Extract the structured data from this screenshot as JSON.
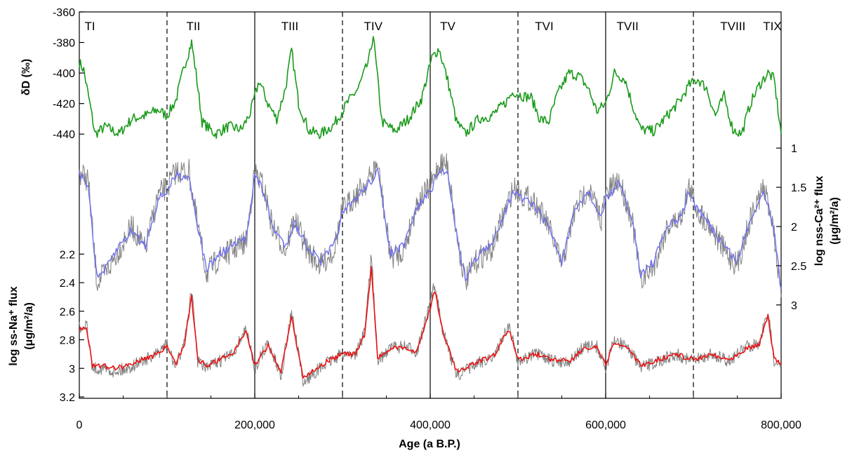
{
  "chart_data": {
    "type": "line",
    "x_axis": {
      "label": "Age (a B.P.)",
      "range": [
        0,
        800000
      ],
      "ticks": [
        0,
        200000,
        400000,
        600000,
        800000
      ],
      "tick_labels": [
        "0",
        "200,000",
        "400,000",
        "600,000",
        "800,000"
      ]
    },
    "terminations": [
      {
        "label": "TI",
        "age": 12000
      },
      {
        "label": "TII",
        "age": 130000
      },
      {
        "label": "TIII",
        "age": 240000
      },
      {
        "label": "TIV",
        "age": 335000
      },
      {
        "label": "TV",
        "age": 420000
      },
      {
        "label": "TVI",
        "age": 530000
      },
      {
        "label": "TVII",
        "age": 625000
      },
      {
        "label": "TVIII",
        "age": 745000
      },
      {
        "label": "TIX",
        "age": 790000
      }
    ],
    "solid_lines": [
      200000,
      400000,
      600000
    ],
    "dashed_lines": [
      100000,
      300000,
      500000,
      700000
    ],
    "panels": [
      {
        "id": "dD",
        "ylabel": "δD (‰)",
        "axis_side": "left",
        "ticks": [
          -360,
          -380,
          -400,
          -420,
          -440
        ],
        "range": [
          -360,
          -450
        ],
        "series": [
          {
            "color": "#1a9a1a",
            "x": [
              0,
              5000,
              12000,
              18000,
              30000,
              45000,
              60000,
              75000,
              90000,
              100000,
              110000,
              120000,
              128000,
              133000,
              140000,
              155000,
              170000,
              185000,
              195000,
              205000,
              215000,
              225000,
              235000,
              242000,
              250000,
              262000,
              275000,
              290000,
              305000,
              318000,
              330000,
              335000,
              345000,
              360000,
              375000,
              390000,
              402000,
              410000,
              420000,
              430000,
              440000,
              455000,
              470000,
              485000,
              495000,
              505000,
              515000,
              525000,
              535000,
              545000,
              558000,
              570000,
              580000,
              590000,
              600000,
              610000,
              622000,
              630000,
              640000,
              655000,
              670000,
              685000,
              695000,
              705000,
              715000,
              725000,
              735000,
              745000,
              755000,
              765000,
              775000,
              785000,
              792000,
              800000
            ],
            "values": [
              -393,
              -398,
              -420,
              -440,
              -435,
              -440,
              -430,
              -428,
              -424,
              -428,
              -418,
              -395,
              -380,
              -400,
              -432,
              -440,
              -435,
              -437,
              -426,
              -405,
              -420,
              -430,
              -410,
              -385,
              -420,
              -438,
              -440,
              -434,
              -420,
              -410,
              -392,
              -375,
              -432,
              -438,
              -430,
              -417,
              -390,
              -384,
              -405,
              -432,
              -440,
              -430,
              -428,
              -420,
              -412,
              -415,
              -416,
              -430,
              -432,
              -414,
              -400,
              -402,
              -410,
              -425,
              -420,
              -400,
              -404,
              -420,
              -437,
              -438,
              -428,
              -418,
              -408,
              -404,
              -410,
              -428,
              -415,
              -437,
              -440,
              -420,
              -408,
              -400,
              -404,
              -440
            ]
          }
        ]
      },
      {
        "id": "ca",
        "ylabel": "log nss-Ca²⁺ flux",
        "ylabel_unit": "(μg/m²/a)",
        "axis_side": "right",
        "ticks": [
          1,
          1.5,
          2,
          2.5,
          3
        ],
        "tick_labels": [
          "1",
          "1.5",
          "2",
          "2.5",
          "3"
        ],
        "range": [
          0.9,
          3.1
        ],
        "series": [
          {
            "name_hidden": "raw",
            "color": "#808080",
            "x": [
              0,
              10000,
              20000,
              30000,
              45000,
              60000,
              75000,
              90000,
              100000,
              110000,
              125000,
              135000,
              145000,
              160000,
              175000,
              190000,
              200000,
              210000,
              220000,
              235000,
              245000,
              260000,
              275000,
              290000,
              300000,
              315000,
              330000,
              340000,
              355000,
              370000,
              385000,
              400000,
              410000,
              420000,
              430000,
              440000,
              455000,
              470000,
              485000,
              495000,
              505000,
              520000,
              535000,
              550000,
              565000,
              580000,
              595000,
              600000,
              615000,
              630000,
              640000,
              655000,
              670000,
              685000,
              695000,
              705000,
              720000,
              735000,
              750000,
              765000,
              780000,
              790000,
              800000
            ],
            "values": [
              1.3,
              1.4,
              2.7,
              2.6,
              2.3,
              2.0,
              2.3,
              1.6,
              1.5,
              1.3,
              1.3,
              2.0,
              2.6,
              2.4,
              2.3,
              2.2,
              1.3,
              1.5,
              2.0,
              2.3,
              1.9,
              2.3,
              2.5,
              2.3,
              1.8,
              1.6,
              1.4,
              1.2,
              2.4,
              2.3,
              1.7,
              1.5,
              1.2,
              1.2,
              2.1,
              2.7,
              2.4,
              2.3,
              1.8,
              1.5,
              1.6,
              1.7,
              2.0,
              2.5,
              1.8,
              1.5,
              1.9,
              1.6,
              1.4,
              1.9,
              2.7,
              2.5,
              2.0,
              1.9,
              1.5,
              1.8,
              2.0,
              2.3,
              2.5,
              1.9,
              1.5,
              1.9,
              2.9
            ]
          },
          {
            "name_hidden": "smoothed",
            "color": "#6f6ff0",
            "x": [
              0,
              10000,
              20000,
              30000,
              45000,
              60000,
              75000,
              90000,
              100000,
              110000,
              125000,
              135000,
              145000,
              160000,
              175000,
              190000,
              200000,
              210000,
              220000,
              235000,
              245000,
              260000,
              275000,
              290000,
              300000,
              315000,
              330000,
              340000,
              355000,
              370000,
              385000,
              400000,
              410000,
              420000,
              430000,
              440000,
              455000,
              470000,
              485000,
              495000,
              505000,
              520000,
              535000,
              550000,
              565000,
              580000,
              595000,
              600000,
              615000,
              630000,
              640000,
              655000,
              670000,
              685000,
              695000,
              705000,
              720000,
              735000,
              750000,
              765000,
              780000,
              790000,
              800000
            ],
            "values": [
              1.35,
              1.45,
              2.65,
              2.55,
              2.25,
              2.05,
              2.25,
              1.65,
              1.55,
              1.35,
              1.35,
              2.0,
              2.55,
              2.35,
              2.25,
              2.15,
              1.35,
              1.55,
              2.0,
              2.25,
              1.95,
              2.25,
              2.45,
              2.25,
              1.85,
              1.65,
              1.45,
              1.3,
              2.35,
              2.25,
              1.75,
              1.55,
              1.3,
              1.3,
              2.1,
              2.65,
              2.35,
              2.25,
              1.8,
              1.55,
              1.65,
              1.75,
              2.0,
              2.45,
              1.8,
              1.55,
              1.9,
              1.65,
              1.45,
              1.9,
              2.6,
              2.45,
              2.0,
              1.9,
              1.55,
              1.8,
              2.0,
              2.25,
              2.45,
              1.9,
              1.55,
              1.9,
              2.8
            ]
          }
        ]
      },
      {
        "id": "na",
        "ylabel": "log ss-Na⁺ flux",
        "ylabel_unit": "(μg/m²/a)",
        "axis_side": "left",
        "ticks": [
          2.2,
          2.4,
          2.6,
          2.8,
          3,
          3.2
        ],
        "tick_labels": [
          "2.2",
          "2.4",
          "2.6",
          "2.8",
          "3",
          "3.2"
        ],
        "range": [
          2.1,
          3.2
        ],
        "series": [
          {
            "name_hidden": "raw",
            "color": "#808080",
            "x": [
              0,
              8000,
              15000,
              25000,
              40000,
              55000,
              70000,
              85000,
              100000,
              110000,
              120000,
              128000,
              135000,
              145000,
              160000,
              175000,
              190000,
              200000,
              215000,
              230000,
              242000,
              255000,
              270000,
              285000,
              300000,
              315000,
              325000,
              333000,
              340000,
              355000,
              370000,
              385000,
              400000,
              405000,
              415000,
              430000,
              445000,
              460000,
              475000,
              485000,
              490000,
              500000,
              520000,
              540000,
              560000,
              575000,
              590000,
              600000,
              610000,
              625000,
              640000,
              660000,
              680000,
              700000,
              720000,
              740000,
              760000,
              775000,
              785000,
              792000,
              800000
            ],
            "values": [
              2.72,
              2.68,
              3.0,
              3.0,
              3.02,
              3.0,
              2.95,
              2.92,
              2.83,
              3.0,
              2.8,
              2.45,
              2.95,
              3.0,
              2.95,
              2.9,
              2.72,
              3.0,
              2.82,
              3.05,
              2.6,
              3.1,
              3.02,
              2.95,
              2.9,
              2.9,
              2.75,
              2.2,
              2.95,
              2.85,
              2.85,
              2.88,
              2.55,
              2.4,
              2.75,
              3.05,
              3.0,
              2.95,
              2.9,
              2.75,
              2.7,
              2.95,
              2.9,
              2.95,
              2.95,
              2.85,
              2.85,
              3.0,
              2.8,
              2.85,
              3.0,
              2.95,
              2.9,
              2.95,
              2.9,
              2.95,
              2.85,
              2.82,
              2.6,
              2.95,
              2.98
            ]
          },
          {
            "name_hidden": "smoothed",
            "color": "#ee1111",
            "x": [
              0,
              8000,
              15000,
              25000,
              40000,
              55000,
              70000,
              85000,
              100000,
              110000,
              120000,
              128000,
              135000,
              145000,
              160000,
              175000,
              190000,
              200000,
              215000,
              230000,
              242000,
              255000,
              270000,
              285000,
              300000,
              315000,
              325000,
              333000,
              340000,
              355000,
              370000,
              385000,
              400000,
              405000,
              415000,
              430000,
              445000,
              460000,
              475000,
              485000,
              490000,
              500000,
              520000,
              540000,
              560000,
              575000,
              590000,
              600000,
              610000,
              625000,
              640000,
              660000,
              680000,
              700000,
              720000,
              740000,
              760000,
              775000,
              785000,
              792000,
              800000
            ],
            "values": [
              2.74,
              2.7,
              2.98,
              2.98,
              3.0,
              2.98,
              2.94,
              2.91,
              2.85,
              2.98,
              2.82,
              2.5,
              2.94,
              2.98,
              2.94,
              2.89,
              2.74,
              2.98,
              2.84,
              3.02,
              2.65,
              3.06,
              3.0,
              2.94,
              2.9,
              2.9,
              2.77,
              2.3,
              2.93,
              2.86,
              2.86,
              2.88,
              2.58,
              2.45,
              2.76,
              3.02,
              2.98,
              2.94,
              2.9,
              2.77,
              2.73,
              2.94,
              2.9,
              2.94,
              2.94,
              2.86,
              2.86,
              2.98,
              2.82,
              2.86,
              2.98,
              2.94,
              2.9,
              2.94,
              2.9,
              2.94,
              2.86,
              2.83,
              2.63,
              2.94,
              2.96
            ]
          }
        ]
      }
    ]
  }
}
